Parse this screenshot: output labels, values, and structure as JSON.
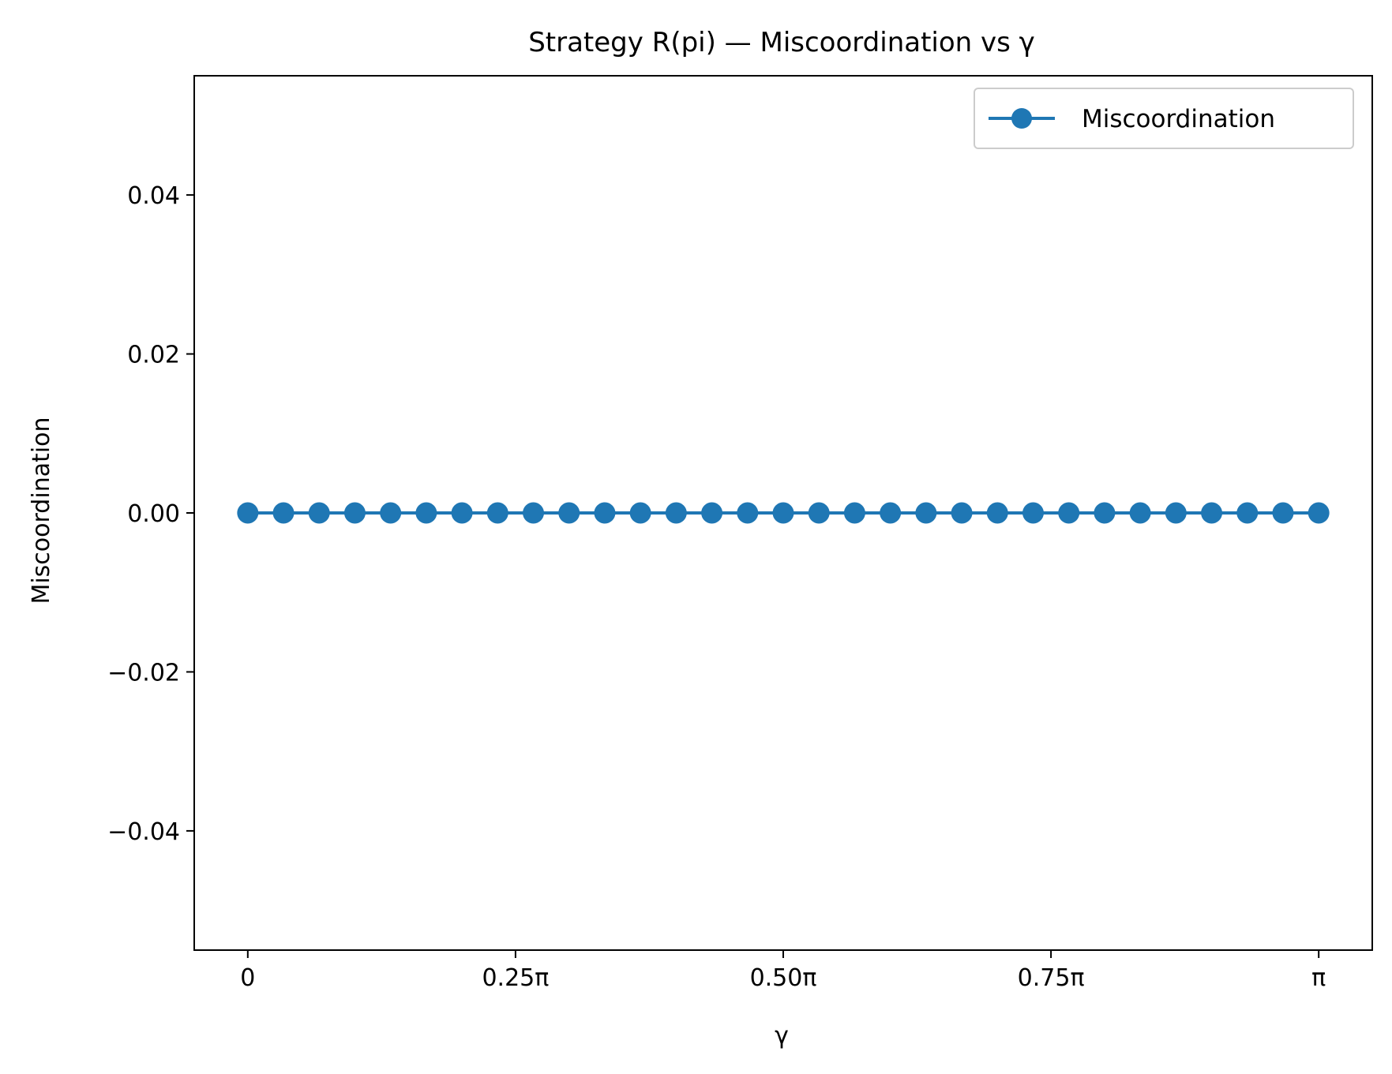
{
  "chart_data": {
    "type": "line",
    "title": "Strategy R(pi) — Miscoordination vs γ",
    "xlabel": "γ",
    "ylabel": "Miscoordination",
    "xlim": [
      -0.15708,
      3.29867
    ],
    "ylim": [
      -0.055,
      0.055
    ],
    "x_ticks": [
      {
        "value": 0,
        "label": "0"
      },
      {
        "value": 0.785398,
        "label": "0.25π"
      },
      {
        "value": 1.570796,
        "label": "0.50π"
      },
      {
        "value": 2.356194,
        "label": "0.75π"
      },
      {
        "value": 3.141593,
        "label": "π"
      }
    ],
    "y_ticks": [
      {
        "value": 0.04,
        "label": "0.04"
      },
      {
        "value": 0.02,
        "label": "0.02"
      },
      {
        "value": 0.0,
        "label": "0.00"
      },
      {
        "value": -0.02,
        "label": "−0.02"
      },
      {
        "value": -0.04,
        "label": "−0.04"
      }
    ],
    "grid": false,
    "legend_position": "top-right",
    "series": [
      {
        "name": "Miscoordination",
        "color": "#1f77b4",
        "marker": "circle",
        "x": [
          0,
          0.10472,
          0.20944,
          0.314159,
          0.418879,
          0.523599,
          0.628319,
          0.733038,
          0.837758,
          0.942478,
          1.047198,
          1.151917,
          1.256637,
          1.361357,
          1.466077,
          1.570796,
          1.675516,
          1.780236,
          1.884956,
          1.989675,
          2.094395,
          2.199115,
          2.303835,
          2.408554,
          2.513274,
          2.617994,
          2.722714,
          2.827433,
          2.932153,
          3.036873,
          3.141593
        ],
        "y": [
          0,
          0,
          0,
          0,
          0,
          0,
          0,
          0,
          0,
          0,
          0,
          0,
          0,
          0,
          0,
          0,
          0,
          0,
          0,
          0,
          0,
          0,
          0,
          0,
          0,
          0,
          0,
          0,
          0,
          0,
          0
        ]
      }
    ]
  }
}
